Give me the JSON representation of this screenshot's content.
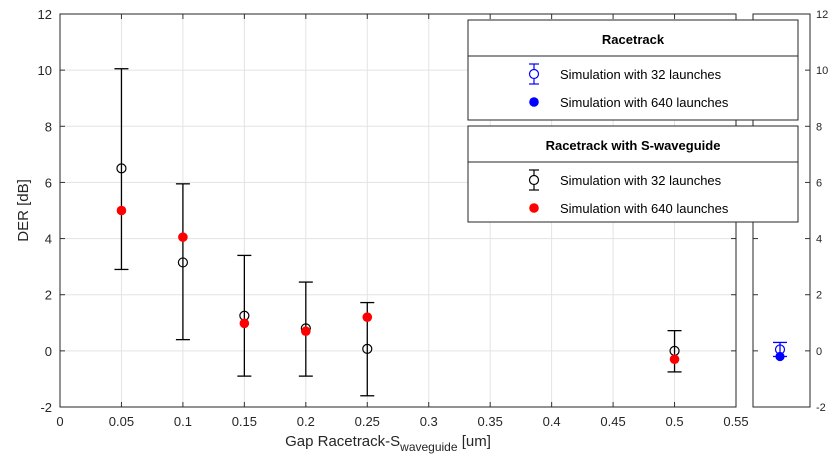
{
  "chart_data": [
    {
      "type": "scatter",
      "panel": "main",
      "xlabel": "Gap Racetrack-S",
      "xlabel_subscript": "waveguide",
      "xlabel_unit": " [um]",
      "ylabel": "DER [dB]",
      "xlim": [
        0,
        0.55
      ],
      "ylim": [
        -2,
        12
      ],
      "xticks": [
        "0",
        "0.05",
        "0.1",
        "0.15",
        "0.2",
        "0.25",
        "0.3",
        "0.35",
        "0.4",
        "0.45",
        "0.5",
        "0.55"
      ],
      "yticks": [
        "-2",
        "0",
        "2",
        "4",
        "6",
        "8",
        "10",
        "12"
      ],
      "grid": true,
      "series": [
        {
          "group": "Racetrack with S-waveguide",
          "name": "Simulation with 32 launches",
          "marker": "open-circle-errorbar",
          "color": "#000000",
          "x": [
            0.05,
            0.1,
            0.15,
            0.2,
            0.25,
            0.5
          ],
          "y": [
            6.5,
            3.15,
            1.25,
            0.8,
            0.07,
            0.0
          ],
          "y_low": [
            2.9,
            0.4,
            -0.9,
            -0.9,
            -1.6,
            -0.75
          ],
          "y_high": [
            10.05,
            5.95,
            3.4,
            2.45,
            1.72,
            0.72
          ]
        },
        {
          "group": "Racetrack with S-waveguide",
          "name": "Simulation with 640 launches",
          "marker": "filled-circle",
          "color": "#ff0000",
          "x": [
            0.05,
            0.1,
            0.15,
            0.2,
            0.25,
            0.5
          ],
          "y": [
            5.0,
            4.05,
            0.98,
            0.7,
            1.2,
            -0.3
          ]
        }
      ],
      "legend": {
        "placement": "top-right",
        "sections": [
          {
            "title": "Racetrack",
            "entries": [
              {
                "label": "Simulation with 32 launches",
                "marker": "open-circle-errorbar",
                "color": "#0000ff"
              },
              {
                "label": "Simulation with 640 launches",
                "marker": "filled-circle",
                "color": "#0000ff"
              }
            ]
          },
          {
            "title": "Racetrack with S-waveguide",
            "entries": [
              {
                "label": "Simulation with 32 launches",
                "marker": "open-circle-errorbar",
                "color": "#000000"
              },
              {
                "label": "Simulation with 640 launches",
                "marker": "filled-circle",
                "color": "#ff0000"
              }
            ]
          }
        ]
      }
    },
    {
      "type": "scatter",
      "panel": "right",
      "ylim": [
        -2,
        12
      ],
      "yticks": [
        "-2",
        "0",
        "2",
        "4",
        "6",
        "8",
        "10",
        "12"
      ],
      "series": [
        {
          "group": "Racetrack",
          "name": "Simulation with 32 launches",
          "marker": "open-circle-errorbar",
          "color": "#0000ff",
          "y": [
            0.05
          ],
          "y_low": [
            -0.2
          ],
          "y_high": [
            0.3
          ]
        },
        {
          "group": "Racetrack",
          "name": "Simulation with 640 launches",
          "marker": "filled-circle",
          "color": "#0000ff",
          "y": [
            -0.2
          ]
        }
      ]
    }
  ]
}
